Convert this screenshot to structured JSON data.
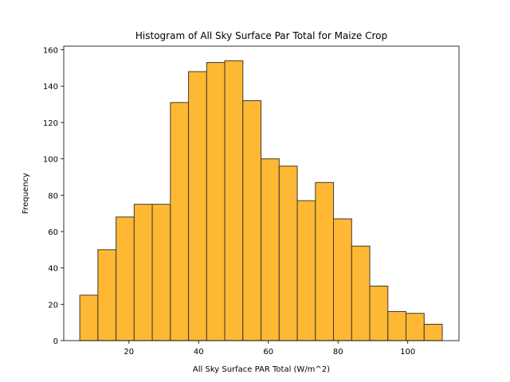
{
  "chart_data": {
    "type": "bar",
    "title": "Histogram of All Sky Surface Par Total for Maize Crop",
    "xlabel": "All Sky Surface PAR Total (W/m^2)",
    "ylabel": "Frequency",
    "xlim": [
      1.3,
      114.7
    ],
    "ylim": [
      0,
      162
    ],
    "xticks": [
      20,
      40,
      60,
      80,
      100
    ],
    "yticks": [
      0,
      20,
      40,
      60,
      80,
      100,
      120,
      140,
      160
    ],
    "bin_edges": [
      5.9,
      11.1,
      16.3,
      21.5,
      26.7,
      31.9,
      37.1,
      42.3,
      47.5,
      52.7,
      57.9,
      63.1,
      68.3,
      73.5,
      78.7,
      83.9,
      89.1,
      94.3,
      99.5,
      104.7,
      109.9
    ],
    "values": [
      25,
      50,
      68,
      75,
      75,
      131,
      148,
      153,
      154,
      132,
      100,
      96,
      77,
      87,
      67,
      52,
      30,
      16,
      15,
      9
    ],
    "bar_color": "#FFB833",
    "bar_edge_color": "#3f3a30",
    "grid": false,
    "legend": "none"
  }
}
